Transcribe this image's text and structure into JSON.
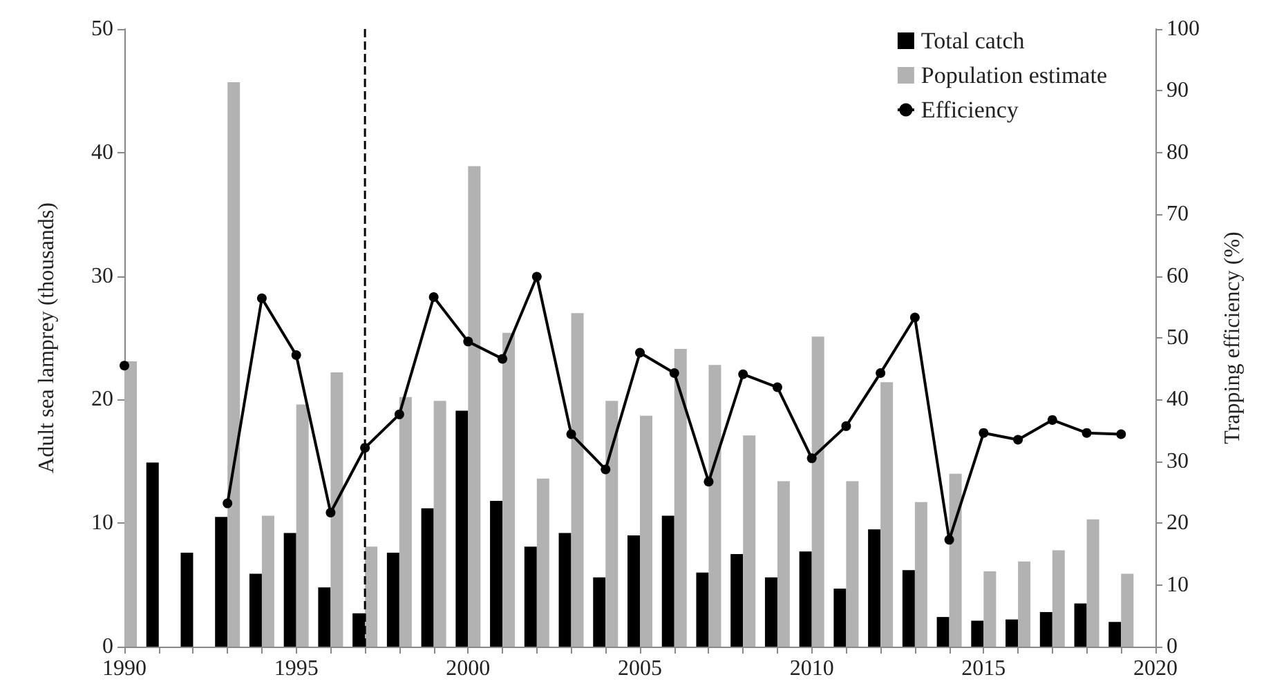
{
  "chart_data": {
    "type": "bar",
    "xlabel": null,
    "ylabel": "Adult sea lamprey (thousands)",
    "y2label": "Trapping efficiency (%)",
    "x": [
      1990,
      1991,
      1992,
      1993,
      1994,
      1995,
      1996,
      1997,
      1998,
      1999,
      2000,
      2001,
      2002,
      2003,
      2004,
      2005,
      2006,
      2007,
      2008,
      2009,
      2010,
      2011,
      2012,
      2013,
      2014,
      2015,
      2016,
      2017,
      2018,
      2019
    ],
    "series": [
      {
        "name": "Total catch",
        "color": "#000000",
        "values": [
          null,
          14.9,
          7.6,
          10.5,
          5.9,
          9.2,
          4.8,
          2.7,
          7.6,
          11.2,
          19.1,
          11.8,
          8.1,
          9.2,
          5.6,
          9.0,
          10.6,
          6.0,
          7.5,
          5.6,
          7.7,
          4.7,
          9.5,
          6.2,
          2.4,
          2.1,
          2.2,
          2.8,
          3.5,
          2.0
        ]
      },
      {
        "name": "Population estimate",
        "color": "#b2b2b2",
        "values": [
          23.1,
          null,
          null,
          45.7,
          10.6,
          19.6,
          22.2,
          8.1,
          20.2,
          19.9,
          38.9,
          25.4,
          13.6,
          27.0,
          19.9,
          18.7,
          24.1,
          22.8,
          17.1,
          13.4,
          25.1,
          13.4,
          21.4,
          11.7,
          14.0,
          6.1,
          6.9,
          7.8,
          10.3,
          5.9
        ]
      },
      {
        "name": "Efficiency",
        "type": "line",
        "axis": "y2",
        "color": "#000000",
        "marker": "circle",
        "line_style": "solid",
        "values": [
          45.5,
          null,
          null,
          23.2,
          56.4,
          47.2,
          21.7,
          32.2,
          37.6,
          56.6,
          49.4,
          46.6,
          59.9,
          34.4,
          28.7,
          47.6,
          44.3,
          26.7,
          44.1,
          42.0,
          30.5,
          35.7,
          44.3,
          53.3,
          17.3,
          34.6,
          33.5,
          36.7,
          34.6,
          34.4
        ]
      }
    ],
    "xlim": [
      1990,
      2020
    ],
    "xticks": [
      1990,
      {
        "value": 1991,
        "label": null
      },
      {
        "value": 1992,
        "label": null
      },
      {
        "value": 1993,
        "label": null
      },
      {
        "value": 1994,
        "label": null
      },
      1995,
      {
        "value": 1996,
        "label": null
      },
      {
        "value": 1997,
        "label": null
      },
      {
        "value": 1998,
        "label": null
      },
      {
        "value": 1999,
        "label": null
      },
      2000,
      {
        "value": 2001,
        "label": null
      },
      {
        "value": 2002,
        "label": null
      },
      {
        "value": 2003,
        "label": null
      },
      {
        "value": 2004,
        "label": null
      },
      2005,
      {
        "value": 2006,
        "label": null
      },
      {
        "value": 2007,
        "label": null
      },
      {
        "value": 2008,
        "label": null
      },
      {
        "value": 2009,
        "label": null
      },
      2010,
      {
        "value": 2011,
        "label": null
      },
      {
        "value": 2012,
        "label": null
      },
      {
        "value": 2013,
        "label": null
      },
      {
        "value": 2014,
        "label": null
      },
      2015,
      {
        "value": 2016,
        "label": null
      },
      {
        "value": 2017,
        "label": null
      },
      {
        "value": 2018,
        "label": null
      },
      {
        "value": 2019,
        "label": null
      },
      2020
    ],
    "ylim": [
      0,
      50
    ],
    "yticks": [
      0,
      10,
      20,
      30,
      40,
      50
    ],
    "y2lim": [
      0,
      100
    ],
    "y2ticks": [
      0,
      10,
      20,
      30,
      40,
      50,
      60,
      70,
      80,
      90,
      100
    ],
    "ref_lines": [
      {
        "axis": "x",
        "value": 1997,
        "color": "#000000",
        "line_style": "dashed"
      }
    ],
    "grid": false,
    "legend": "top right"
  }
}
